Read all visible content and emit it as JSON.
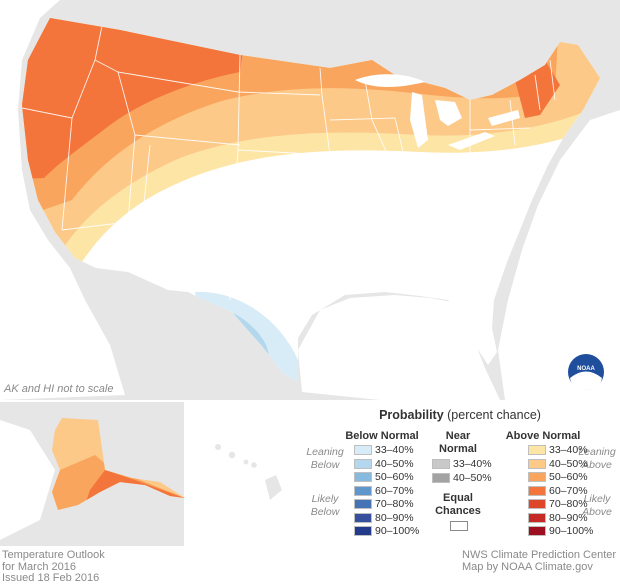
{
  "note": "AK and HI not to scale",
  "legend": {
    "title_bold": "Probability",
    "title_rest": " (percent chance)",
    "below": {
      "head": "Below Normal",
      "items": [
        {
          "label": "33–40%",
          "color": "#d8ecf7"
        },
        {
          "label": "40–50%",
          "color": "#b3d8ee"
        },
        {
          "label": "50–60%",
          "color": "#86bbdf"
        },
        {
          "label": "60–70%",
          "color": "#5f96cb"
        },
        {
          "label": "70–80%",
          "color": "#4673b4"
        },
        {
          "label": "80–90%",
          "color": "#35519d"
        },
        {
          "label": "90–100%",
          "color": "#243a8a"
        }
      ]
    },
    "near": {
      "head": "Near Normal",
      "items": [
        {
          "label": "33–40%",
          "color": "#c9c9c9"
        },
        {
          "label": "40–50%",
          "color": "#a3a3a3"
        }
      ]
    },
    "equal": {
      "head": "Equal Chances",
      "color": "#ffffff"
    },
    "above": {
      "head": "Above Normal",
      "items": [
        {
          "label": "33–40%",
          "color": "#fde5a6"
        },
        {
          "label": "40–50%",
          "color": "#fcc988"
        },
        {
          "label": "50–60%",
          "color": "#f9a55d"
        },
        {
          "label": "60–70%",
          "color": "#f3753c"
        },
        {
          "label": "70–80%",
          "color": "#de4629"
        },
        {
          "label": "80–90%",
          "color": "#c52a26"
        },
        {
          "label": "90–100%",
          "color": "#9e0f20"
        }
      ]
    },
    "leaning_below": "Leaning Below",
    "likely_below": "Likely Below",
    "leaning_above": "Leaning Above",
    "likely_above": "Likely Above"
  },
  "footer_left": {
    "line1": "Temperature Outlook",
    "line2": "for March 2016",
    "line3": "Issued 18 Feb 2016"
  },
  "footer_right": {
    "line1": "NWS Climate Prediction Center",
    "line2": "Map by NOAA Climate.gov"
  },
  "logo_text": "NOAA",
  "colors": {
    "background_land": "#e6e6e6",
    "water": "#ffffff",
    "border": "#ffffff"
  }
}
